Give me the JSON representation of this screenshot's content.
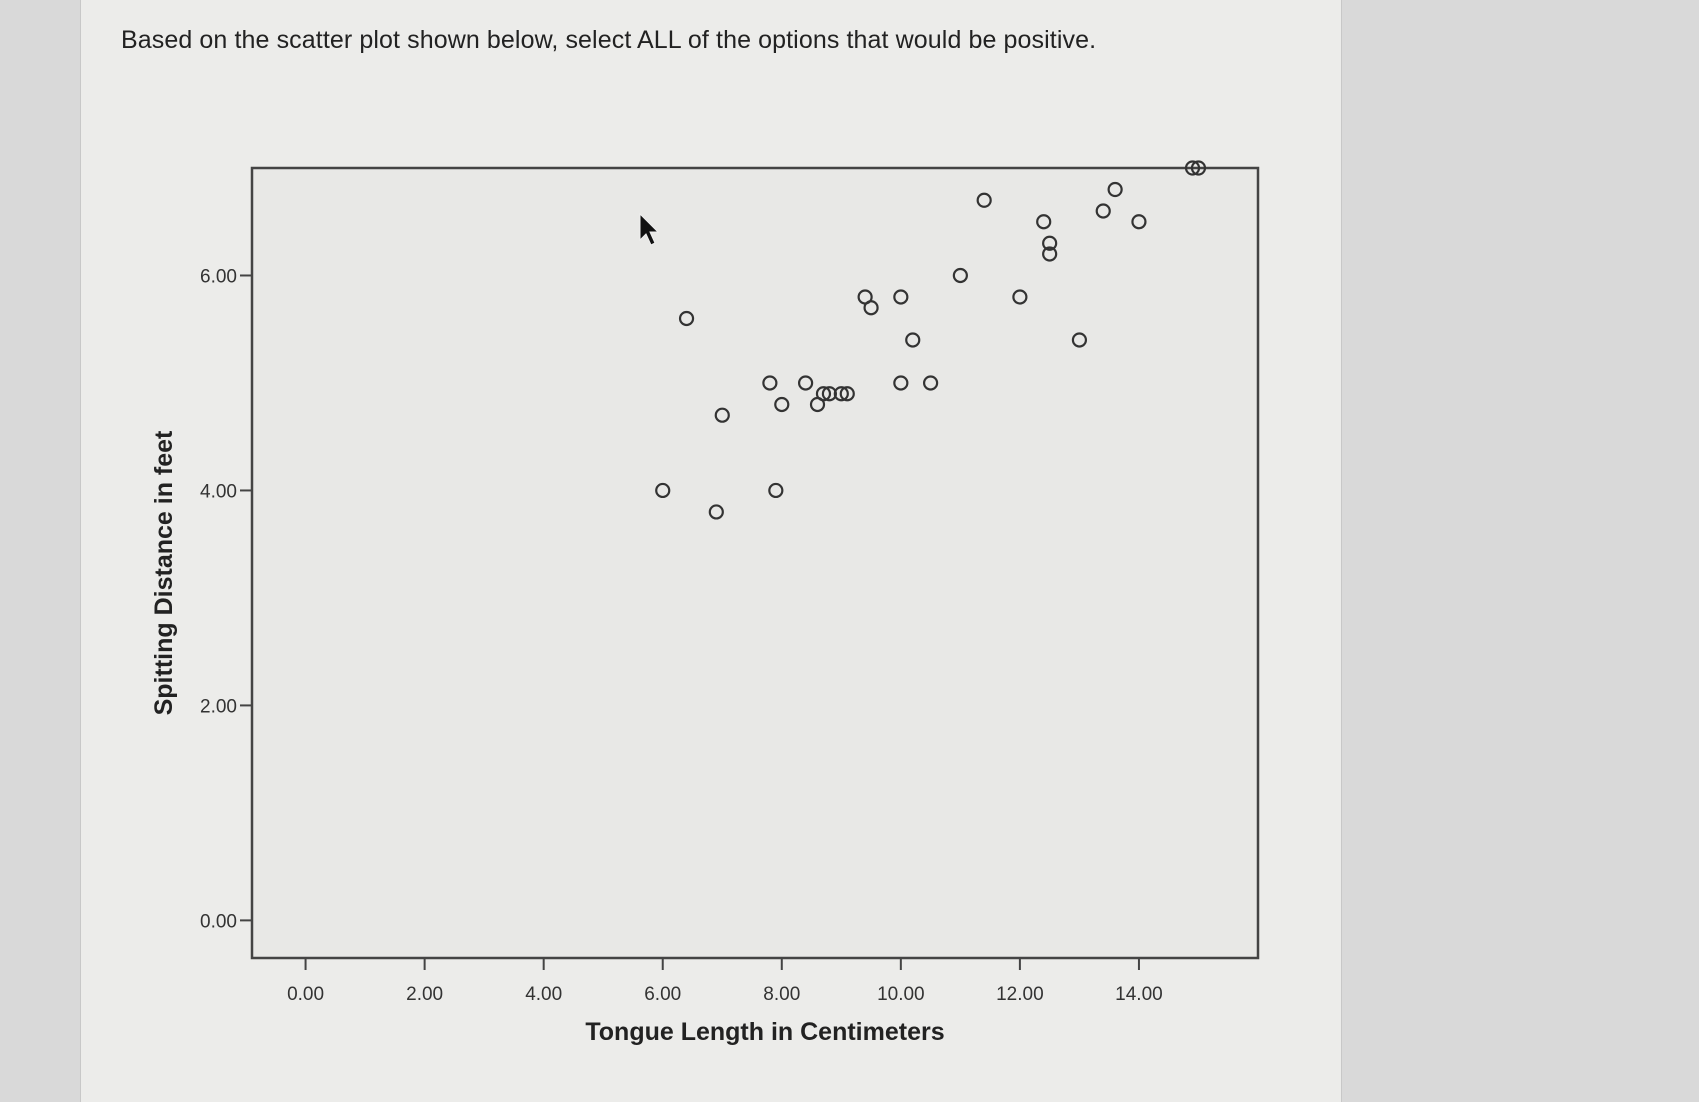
{
  "question": {
    "text": "Based on the scatter plot shown below, select ALL of the options that would be positive."
  },
  "chart_data": {
    "type": "scatter",
    "xlabel": "Tongue Length in Centimeters",
    "ylabel": "Spitting Distance in feet",
    "xlim": [
      -0.9,
      16.0
    ],
    "ylim": [
      -0.35,
      7.0
    ],
    "xticks": [
      {
        "value": 0,
        "label": "0.00"
      },
      {
        "value": 2,
        "label": "2.00"
      },
      {
        "value": 4,
        "label": "4.00"
      },
      {
        "value": 6,
        "label": "6.00"
      },
      {
        "value": 8,
        "label": "8.00"
      },
      {
        "value": 10,
        "label": "10.00"
      },
      {
        "value": 12,
        "label": "12.00"
      },
      {
        "value": 14,
        "label": "14.00"
      }
    ],
    "yticks": [
      {
        "value": 0,
        "label": "0.00"
      },
      {
        "value": 2,
        "label": "2.00"
      },
      {
        "value": 4,
        "label": "4.00"
      },
      {
        "value": 6,
        "label": "6.00"
      }
    ],
    "grid": false,
    "points": [
      {
        "x": 6.0,
        "y": 4.0
      },
      {
        "x": 6.4,
        "y": 5.6
      },
      {
        "x": 6.9,
        "y": 3.8
      },
      {
        "x": 7.0,
        "y": 4.7
      },
      {
        "x": 7.8,
        "y": 5.0
      },
      {
        "x": 7.9,
        "y": 4.0
      },
      {
        "x": 8.0,
        "y": 4.8
      },
      {
        "x": 8.4,
        "y": 5.0
      },
      {
        "x": 8.6,
        "y": 4.8
      },
      {
        "x": 8.7,
        "y": 4.9
      },
      {
        "x": 8.8,
        "y": 4.9
      },
      {
        "x": 9.0,
        "y": 4.9
      },
      {
        "x": 9.1,
        "y": 4.9
      },
      {
        "x": 9.4,
        "y": 5.8
      },
      {
        "x": 9.5,
        "y": 5.7
      },
      {
        "x": 10.0,
        "y": 5.0
      },
      {
        "x": 10.0,
        "y": 5.8
      },
      {
        "x": 10.2,
        "y": 5.4
      },
      {
        "x": 10.5,
        "y": 5.0
      },
      {
        "x": 11.0,
        "y": 6.0
      },
      {
        "x": 11.4,
        "y": 6.7
      },
      {
        "x": 12.0,
        "y": 5.8
      },
      {
        "x": 12.4,
        "y": 6.5
      },
      {
        "x": 12.5,
        "y": 6.3
      },
      {
        "x": 12.5,
        "y": 6.2
      },
      {
        "x": 13.0,
        "y": 5.4
      },
      {
        "x": 13.4,
        "y": 6.6
      },
      {
        "x": 13.6,
        "y": 6.8
      },
      {
        "x": 14.0,
        "y": 6.5
      },
      {
        "x": 14.9,
        "y": 7.0
      },
      {
        "x": 15.0,
        "y": 7.0
      }
    ],
    "colors": {
      "plot_bg": "#e8e8e6",
      "frame": "#444444",
      "marker": "#333333"
    }
  }
}
